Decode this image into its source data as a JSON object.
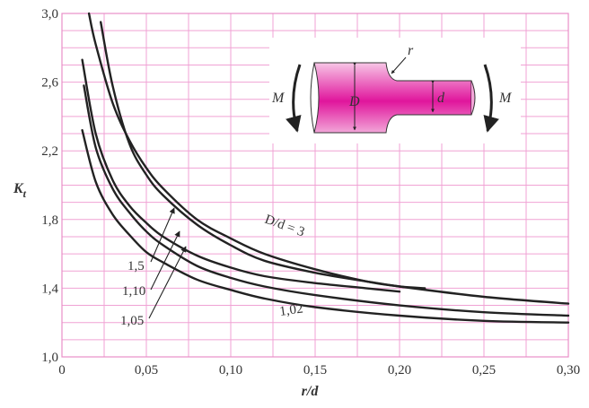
{
  "chart_data": {
    "type": "line",
    "xlabel": "r/d",
    "ylabel": "K",
    "ylabel_sub": "t",
    "xlim": [
      0,
      0.3
    ],
    "ylim": [
      1.0,
      3.0
    ],
    "grid": true,
    "colors": {
      "grid": "#f0a2d4",
      "plot_border": "#e88fc8",
      "curve": "#222222",
      "shaft_light": "#f7c6e6",
      "shaft_dark": "#e0159c"
    },
    "x_ticks": [
      {
        "value": 0,
        "label": "0"
      },
      {
        "value": 0.05,
        "label": "0,05"
      },
      {
        "value": 0.1,
        "label": "0,10"
      },
      {
        "value": 0.15,
        "label": "0,15"
      },
      {
        "value": 0.2,
        "label": "0,20"
      },
      {
        "value": 0.25,
        "label": "0,25"
      },
      {
        "value": 0.3,
        "label": "0,30"
      }
    ],
    "y_ticks": [
      {
        "value": 1.0,
        "label": "1,0"
      },
      {
        "value": 1.4,
        "label": "1,4"
      },
      {
        "value": 1.8,
        "label": "1,8"
      },
      {
        "value": 2.2,
        "label": "2,2"
      },
      {
        "value": 2.6,
        "label": "2,6"
      },
      {
        "value": 3.0,
        "label": "3,0"
      }
    ],
    "series": [
      {
        "name": "D/d = 3",
        "x": [
          0.016,
          0.02,
          0.03,
          0.04,
          0.05,
          0.06,
          0.08,
          0.1,
          0.12,
          0.15,
          0.18,
          0.2,
          0.25,
          0.3
        ],
        "y": [
          3.0,
          2.82,
          2.48,
          2.26,
          2.1,
          1.98,
          1.8,
          1.69,
          1.6,
          1.51,
          1.44,
          1.41,
          1.35,
          1.31
        ]
      },
      {
        "name": "1,5",
        "x": [
          0.023,
          0.03,
          0.04,
          0.05,
          0.06,
          0.08,
          0.1,
          0.12,
          0.15,
          0.18,
          0.2,
          0.215
        ],
        "y": [
          2.95,
          2.58,
          2.24,
          2.06,
          1.94,
          1.77,
          1.65,
          1.56,
          1.49,
          1.44,
          1.41,
          1.4
        ]
      },
      {
        "name": "1,10",
        "x": [
          0.012,
          0.02,
          0.03,
          0.04,
          0.05,
          0.06,
          0.08,
          0.1,
          0.12,
          0.15,
          0.18,
          0.2
        ],
        "y": [
          2.73,
          2.3,
          2.03,
          1.88,
          1.78,
          1.7,
          1.59,
          1.52,
          1.47,
          1.43,
          1.4,
          1.38
        ]
      },
      {
        "name": "1,05",
        "x": [
          0.013,
          0.02,
          0.03,
          0.04,
          0.05,
          0.06,
          0.08,
          0.1,
          0.12,
          0.15,
          0.2,
          0.25,
          0.3
        ],
        "y": [
          2.58,
          2.22,
          1.98,
          1.84,
          1.73,
          1.65,
          1.53,
          1.46,
          1.41,
          1.36,
          1.3,
          1.26,
          1.24
        ]
      },
      {
        "name": "1,02",
        "x": [
          0.012,
          0.02,
          0.03,
          0.04,
          0.05,
          0.06,
          0.08,
          0.1,
          0.12,
          0.15,
          0.2,
          0.25,
          0.3
        ],
        "y": [
          2.32,
          2.02,
          1.83,
          1.71,
          1.61,
          1.55,
          1.45,
          1.39,
          1.34,
          1.29,
          1.24,
          1.21,
          1.2
        ]
      }
    ],
    "annotations": [
      {
        "text": "M"
      },
      {
        "text": "M"
      },
      {
        "text": "D"
      },
      {
        "text": "d"
      },
      {
        "text": "r"
      }
    ]
  }
}
